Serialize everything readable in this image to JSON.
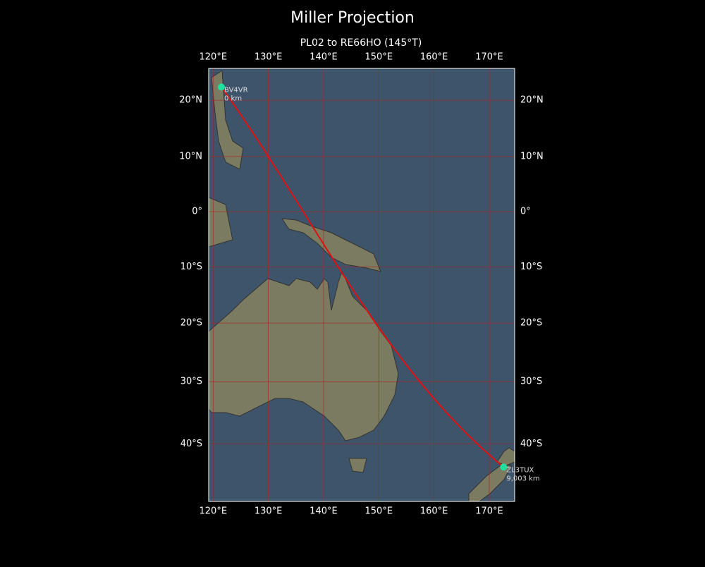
{
  "map": {
    "title": "Miller Projection",
    "subtitle": "PL02 to RE66HO (145°T)",
    "projection": "miller",
    "lonlim": [
      119.2,
      174.6
    ],
    "latlim": [
      25.5,
      -48.5
    ],
    "lonticks": [
      {
        "value": 120,
        "label": "120°E"
      },
      {
        "value": 130,
        "label": "130°E"
      },
      {
        "value": 140,
        "label": "140°E"
      },
      {
        "value": 150,
        "label": "150°E"
      },
      {
        "value": 160,
        "label": "160°E"
      },
      {
        "value": 170,
        "label": "170°E"
      }
    ],
    "latticks": [
      {
        "value": 20,
        "label": "20°N"
      },
      {
        "value": 10,
        "label": "10°N"
      },
      {
        "value": 0,
        "label": "0°"
      },
      {
        "value": -10,
        "label": "10°S"
      },
      {
        "value": -20,
        "label": "20°S"
      },
      {
        "value": -30,
        "label": "30°S"
      },
      {
        "value": -40,
        "label": "40°S"
      }
    ],
    "path_color": "#e01010",
    "grid_color": "#b02020",
    "station_color": "#20e0a0",
    "stations": [
      {
        "name": "BV4VR",
        "distance": "0 km",
        "lon": 121.5,
        "lat": 22.3
      },
      {
        "name": "ZL3TUX",
        "distance": "9,003 km",
        "lon": 172.6,
        "lat": -43.5
      }
    ]
  }
}
